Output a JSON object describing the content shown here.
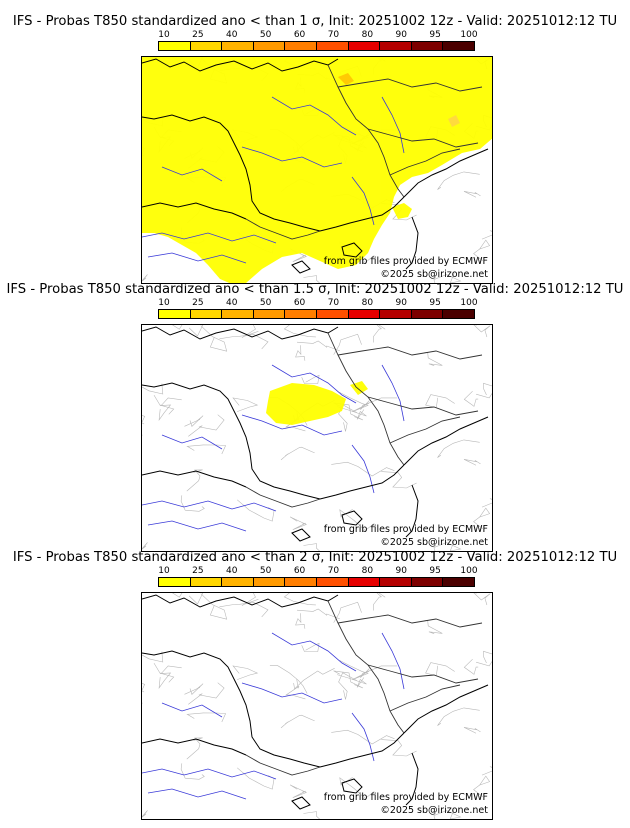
{
  "colorbar": {
    "ticks": [
      "10",
      "25",
      "40",
      "50",
      "60",
      "70",
      "80",
      "90",
      "95",
      "100"
    ],
    "colors": [
      "#ffff00",
      "#ffd700",
      "#ffb300",
      "#ff9a00",
      "#ff7e00",
      "#ff5000",
      "#e60000",
      "#b40000",
      "#7d0000",
      "#4b0000"
    ]
  },
  "credits": {
    "source": "from grib files provided by ECMWF",
    "copyright": "©2025 sb@irizone.net"
  },
  "panels": [
    {
      "title": "IFS - Probas T850  standardized ano < than 1 σ, Init: 20251002 12z - Valid: 20251012:12 TU",
      "coverage": "widespread"
    },
    {
      "title": "IFS - Probas T850  standardized ano < than 1.5 σ, Init: 20251002 12z - Valid: 20251012:12 TU",
      "coverage": "small-patch"
    },
    {
      "title": "IFS - Probas T850  standardized ano < than 2 σ, Init: 20251002 12z - Valid: 20251012:12 TU",
      "coverage": "none"
    }
  ]
}
